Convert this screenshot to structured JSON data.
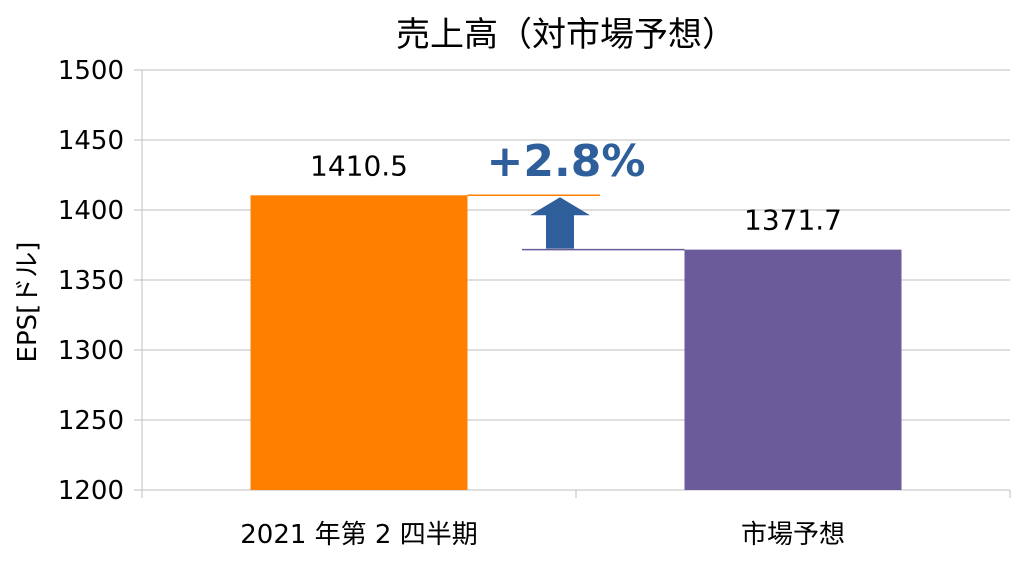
{
  "chart_data": {
    "type": "bar",
    "title": "売上高（対市場予想）",
    "ylabel": "EPS[ドル]",
    "xlabel": "",
    "categories": [
      "2021 年第 2 四半期",
      "市場予想"
    ],
    "values": [
      1410.5,
      1371.7
    ],
    "value_labels": [
      "1410.5",
      "1371.7"
    ],
    "bar_colors": [
      "#ff7f00",
      "#6b5b9a"
    ],
    "ylim": [
      1200,
      1500
    ],
    "yticks": [
      1200,
      1250,
      1300,
      1350,
      1400,
      1450,
      1500
    ],
    "grid": true,
    "legend": "none",
    "annotation": {
      "text": "+2.8%",
      "color": "#2e5f9a",
      "arrow": "up",
      "from_value": 1371.7,
      "to_value": 1410.5
    }
  }
}
